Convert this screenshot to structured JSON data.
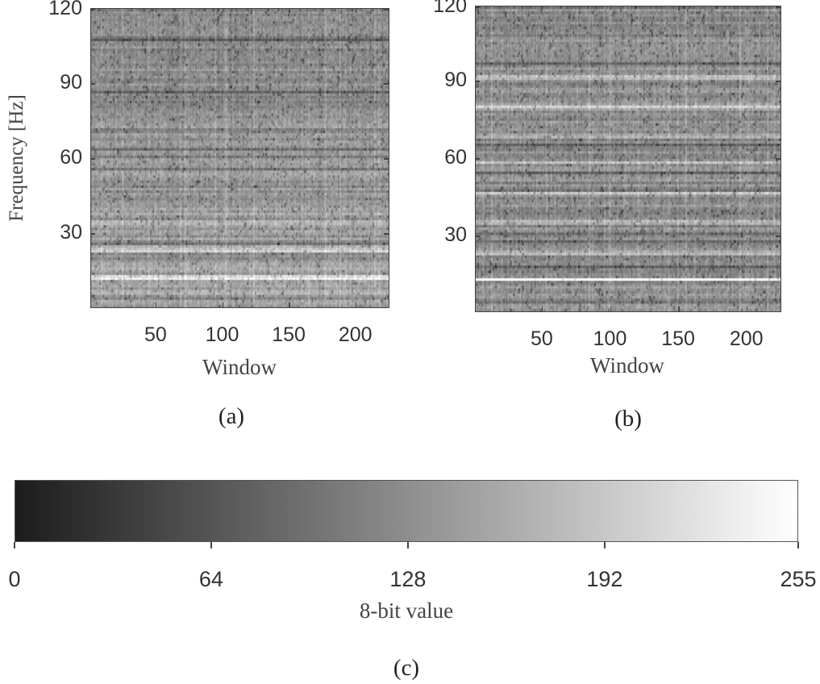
{
  "chart_data": [
    {
      "type": "heatmap",
      "panel_label": "(a)",
      "xlabel": "Window",
      "ylabel": "Frequency [Hz]",
      "xlim": [
        1,
        225
      ],
      "ylim": [
        0,
        120
      ],
      "xticks": [
        "50",
        "100",
        "150",
        "200"
      ],
      "yticks": [
        "30",
        "60",
        "90",
        "120"
      ],
      "colormap": "gray",
      "bright_bands_hz": [
        12,
        23,
        34
      ],
      "mean_level": 0.45
    },
    {
      "type": "heatmap",
      "panel_label": "(b)",
      "xlabel": "Window",
      "ylabel": "",
      "xlim": [
        1,
        225
      ],
      "ylim": [
        0,
        120
      ],
      "xticks": [
        "50",
        "100",
        "150",
        "200"
      ],
      "yticks": [
        "30",
        "60",
        "90",
        "120"
      ],
      "colormap": "gray",
      "bright_bands_hz": [
        12.5,
        23,
        35,
        46.5,
        58,
        69,
        80.5,
        92
      ],
      "mean_level": 0.5
    },
    {
      "type": "colorbar",
      "panel_label": "(c)",
      "xlabel": "8-bit value",
      "xlim": [
        0,
        255
      ],
      "xticks": [
        "0",
        "64",
        "128",
        "192",
        "255"
      ],
      "colors": [
        "#1c1c1c",
        "#ffffff"
      ]
    }
  ]
}
